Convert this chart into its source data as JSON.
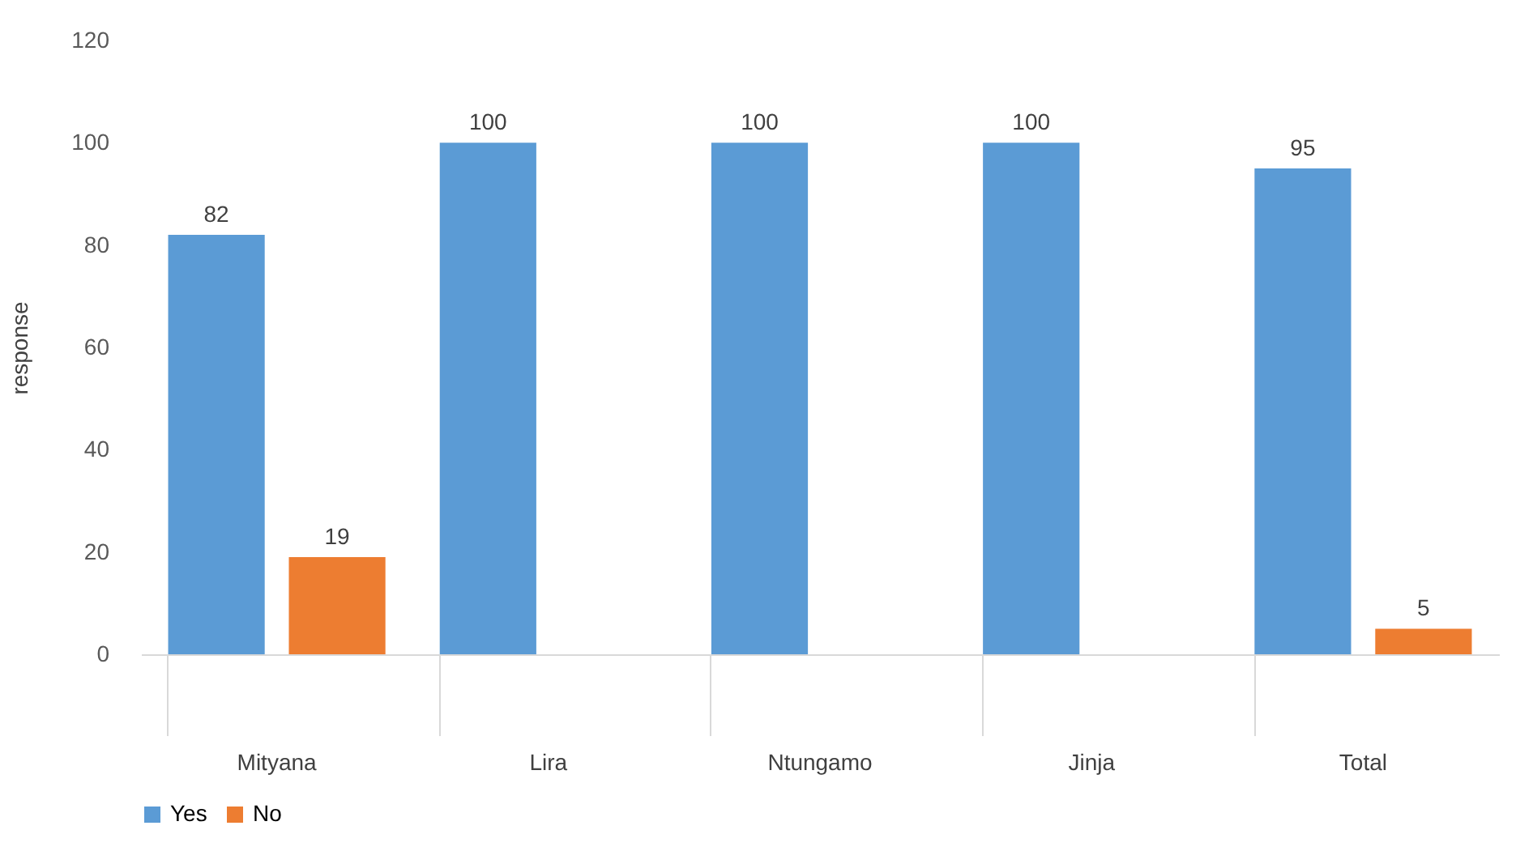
{
  "chart_data": {
    "type": "bar",
    "ylabel": "response",
    "categories": [
      "Mityana",
      "Lira",
      "Ntungamo",
      "Jinja",
      "Total"
    ],
    "series": [
      {
        "name": "Yes",
        "color": "#5b9bd5",
        "values": [
          82,
          100,
          100,
          100,
          95
        ]
      },
      {
        "name": "No",
        "color": "#ed7d31",
        "values": [
          19,
          null,
          null,
          null,
          5
        ]
      }
    ],
    "ylim": [
      0,
      120
    ],
    "yticks": [
      0,
      20,
      40,
      60,
      80,
      100,
      120
    ],
    "grid": false,
    "legend": "bottom",
    "data_labels": true
  }
}
